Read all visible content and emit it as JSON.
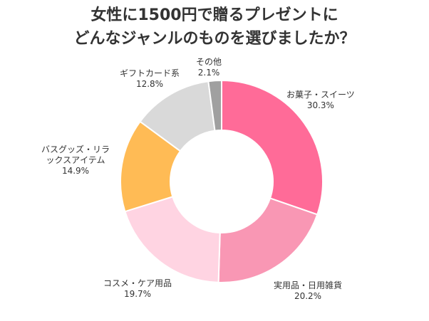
{
  "chart_data": {
    "type": "donut",
    "title": [
      "女性に1500円で贈るプレゼントに",
      "どんなジャンルのものを選びましたか？"
    ],
    "slices": [
      {
        "name": "お菓子・スイーツ",
        "value": 30.3,
        "label": "30.3%",
        "color": "#ff6b98"
      },
      {
        "name": "実用品・日用雑貨",
        "value": 20.2,
        "label": "20.2%",
        "color": "#f997b4"
      },
      {
        "name": "コスメ・ケア用品",
        "value": 19.7,
        "label": "19.7%",
        "color": "#ffd4e2"
      },
      {
        "name": "バスグッズ・リラックスアイテム",
        "name_lines": [
          "バスグッズ・リラ",
          "ックスアイテム"
        ],
        "value": 14.9,
        "label": "14.9%",
        "color": "#ffbb55"
      },
      {
        "name": "ギフトカード系",
        "value": 12.8,
        "label": "12.8%",
        "color": "#d9d9d9"
      },
      {
        "name": "その他",
        "value": 2.1,
        "label": "2.1%",
        "color": "#a0a0a0"
      }
    ],
    "start": "12 o'clock",
    "direction": "clockwise"
  }
}
